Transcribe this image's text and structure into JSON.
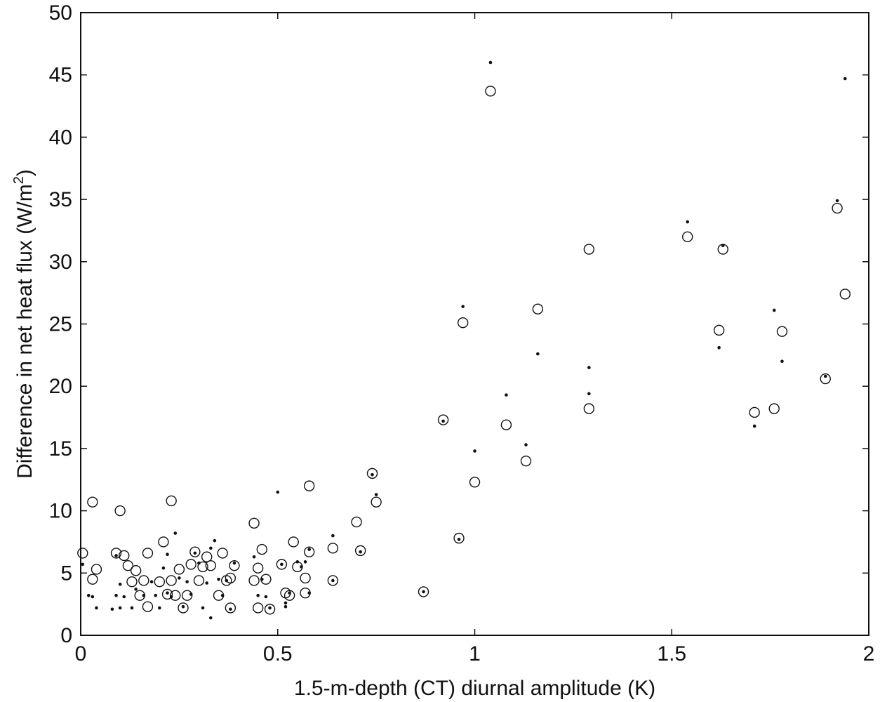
{
  "chart_data": {
    "type": "scatter",
    "title": "",
    "xlabel": "1.5-m-depth (CT) diurnal amplitude (K)",
    "ylabel_main": "Difference in net heat flux (W/m",
    "ylabel_sup": "2",
    "ylabel_close": ")",
    "xlim": [
      0,
      2
    ],
    "ylim": [
      0,
      50
    ],
    "xticks": [
      "0",
      "0.5",
      "1",
      "1.5",
      "2"
    ],
    "yticks": [
      "0",
      "5",
      "10",
      "15",
      "20",
      "25",
      "30",
      "35",
      "40",
      "45",
      "50"
    ],
    "grid": false,
    "legend": "none",
    "marker_color": "#111111",
    "series": [
      {
        "marker": "open-circle",
        "points": [
          [
            0.005,
            6.6
          ],
          [
            0.03,
            4.5
          ],
          [
            0.04,
            5.3
          ],
          [
            0.03,
            10.7
          ],
          [
            0.09,
            6.6
          ],
          [
            0.1,
            10.0
          ],
          [
            0.11,
            6.4
          ],
          [
            0.12,
            5.6
          ],
          [
            0.13,
            4.3
          ],
          [
            0.14,
            5.2
          ],
          [
            0.16,
            4.4
          ],
          [
            0.15,
            3.2
          ],
          [
            0.17,
            2.3
          ],
          [
            0.17,
            6.6
          ],
          [
            0.2,
            4.3
          ],
          [
            0.21,
            7.5
          ],
          [
            0.22,
            3.3
          ],
          [
            0.23,
            4.4
          ],
          [
            0.23,
            10.8
          ],
          [
            0.24,
            3.2
          ],
          [
            0.25,
            5.3
          ],
          [
            0.26,
            2.2
          ],
          [
            0.27,
            3.2
          ],
          [
            0.28,
            5.7
          ],
          [
            0.29,
            6.7
          ],
          [
            0.3,
            4.4
          ],
          [
            0.31,
            5.5
          ],
          [
            0.32,
            6.3
          ],
          [
            0.33,
            5.6
          ],
          [
            0.35,
            3.2
          ],
          [
            0.36,
            6.6
          ],
          [
            0.37,
            4.4
          ],
          [
            0.38,
            4.6
          ],
          [
            0.39,
            5.6
          ],
          [
            0.38,
            2.2
          ],
          [
            0.44,
            9.0
          ],
          [
            0.44,
            4.4
          ],
          [
            0.45,
            5.4
          ],
          [
            0.46,
            6.9
          ],
          [
            0.47,
            4.5
          ],
          [
            0.45,
            2.2
          ],
          [
            0.48,
            2.1
          ],
          [
            0.51,
            5.7
          ],
          [
            0.52,
            3.4
          ],
          [
            0.53,
            3.2
          ],
          [
            0.54,
            7.5
          ],
          [
            0.55,
            5.5
          ],
          [
            0.57,
            4.6
          ],
          [
            0.57,
            3.4
          ],
          [
            0.58,
            6.7
          ],
          [
            0.58,
            12.0
          ],
          [
            0.64,
            4.4
          ],
          [
            0.64,
            7.0
          ],
          [
            0.7,
            9.1
          ],
          [
            0.71,
            6.8
          ],
          [
            0.74,
            13.0
          ],
          [
            0.75,
            10.7
          ],
          [
            0.87,
            3.5
          ],
          [
            0.92,
            17.3
          ],
          [
            0.96,
            7.8
          ],
          [
            0.97,
            25.1
          ],
          [
            1.0,
            12.3
          ],
          [
            1.04,
            43.7
          ],
          [
            1.08,
            16.9
          ],
          [
            1.13,
            14.0
          ],
          [
            1.16,
            26.2
          ],
          [
            1.29,
            31.0
          ],
          [
            1.29,
            18.2
          ],
          [
            1.54,
            32.0
          ],
          [
            1.62,
            24.5
          ],
          [
            1.63,
            31.0
          ],
          [
            1.71,
            17.9
          ],
          [
            1.76,
            18.2
          ],
          [
            1.78,
            24.4
          ],
          [
            1.89,
            20.6
          ],
          [
            1.92,
            34.3
          ],
          [
            1.94,
            27.4
          ]
        ]
      },
      {
        "marker": "dot",
        "points": [
          [
            0.005,
            5.7
          ],
          [
            0.02,
            3.2
          ],
          [
            0.03,
            3.1
          ],
          [
            0.04,
            2.2
          ],
          [
            0.08,
            2.1
          ],
          [
            0.09,
            6.4
          ],
          [
            0.09,
            3.2
          ],
          [
            0.1,
            2.2
          ],
          [
            0.1,
            4.1
          ],
          [
            0.11,
            3.1
          ],
          [
            0.13,
            2.2
          ],
          [
            0.14,
            3.7
          ],
          [
            0.16,
            3.2
          ],
          [
            0.18,
            4.3
          ],
          [
            0.19,
            3.2
          ],
          [
            0.2,
            2.2
          ],
          [
            0.21,
            5.4
          ],
          [
            0.22,
            3.4
          ],
          [
            0.22,
            6.5
          ],
          [
            0.23,
            3.1
          ],
          [
            0.24,
            8.2
          ],
          [
            0.25,
            4.6
          ],
          [
            0.26,
            2.3
          ],
          [
            0.27,
            4.3
          ],
          [
            0.28,
            3.3
          ],
          [
            0.29,
            6.6
          ],
          [
            0.3,
            5.8
          ],
          [
            0.31,
            2.2
          ],
          [
            0.32,
            4.2
          ],
          [
            0.33,
            7.0
          ],
          [
            0.33,
            1.4
          ],
          [
            0.34,
            7.6
          ],
          [
            0.35,
            4.5
          ],
          [
            0.36,
            3.2
          ],
          [
            0.37,
            4.4
          ],
          [
            0.38,
            2.1
          ],
          [
            0.39,
            5.8
          ],
          [
            0.44,
            6.3
          ],
          [
            0.45,
            3.2
          ],
          [
            0.46,
            4.5
          ],
          [
            0.47,
            3.1
          ],
          [
            0.48,
            2.2
          ],
          [
            0.5,
            11.5
          ],
          [
            0.51,
            5.7
          ],
          [
            0.52,
            2.3
          ],
          [
            0.52,
            2.6
          ],
          [
            0.53,
            3.4
          ],
          [
            0.55,
            5.9
          ],
          [
            0.56,
            5.5
          ],
          [
            0.57,
            5.9
          ],
          [
            0.58,
            3.4
          ],
          [
            0.58,
            6.9
          ],
          [
            0.64,
            8.0
          ],
          [
            0.64,
            4.4
          ],
          [
            0.71,
            6.7
          ],
          [
            0.74,
            12.9
          ],
          [
            0.75,
            11.3
          ],
          [
            0.87,
            3.5
          ],
          [
            0.92,
            17.2
          ],
          [
            0.96,
            7.7
          ],
          [
            0.97,
            26.4
          ],
          [
            1.0,
            14.8
          ],
          [
            1.04,
            46.0
          ],
          [
            1.08,
            19.3
          ],
          [
            1.13,
            15.3
          ],
          [
            1.16,
            22.6
          ],
          [
            1.29,
            21.5
          ],
          [
            1.29,
            19.4
          ],
          [
            1.54,
            33.2
          ],
          [
            1.62,
            23.1
          ],
          [
            1.63,
            31.3
          ],
          [
            1.71,
            16.8
          ],
          [
            1.76,
            26.1
          ],
          [
            1.78,
            22.0
          ],
          [
            1.89,
            20.8
          ],
          [
            1.92,
            34.9
          ],
          [
            1.94,
            44.7
          ]
        ]
      }
    ]
  }
}
